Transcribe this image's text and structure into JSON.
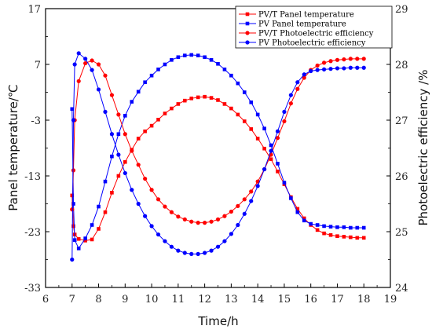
{
  "chart_data": {
    "type": "line",
    "xlabel": "Time/h",
    "ylabel_left": "Panel temperature/℃",
    "ylabel_right": "Photoelectric efficiency /%",
    "xlim": [
      6,
      19
    ],
    "ylim_left": [
      -33,
      17
    ],
    "ylim_right": [
      24,
      29
    ],
    "x_ticks": [
      "6",
      "7",
      "8",
      "9",
      "10",
      "11",
      "12",
      "13",
      "14",
      "15",
      "16",
      "17",
      "18",
      "19"
    ],
    "y_left_ticks": [
      "-33",
      "-23",
      "-13",
      "-3",
      "7",
      "17"
    ],
    "y_right_ticks": [
      "24",
      "25",
      "26",
      "27",
      "28",
      "29"
    ],
    "legend_position": "top-right",
    "series": [
      {
        "name": "PV/T Panel temperature",
        "axis": "left",
        "color": "#ff0000",
        "marker": "square",
        "x": [
          7.0,
          7.05,
          7.1,
          7.25,
          7.5,
          7.75,
          8.0,
          8.25,
          8.5,
          8.75,
          9.0,
          9.25,
          9.5,
          9.75,
          10.0,
          10.25,
          10.5,
          10.75,
          11.0,
          11.25,
          11.5,
          11.75,
          12.0,
          12.25,
          12.5,
          12.75,
          13.0,
          13.25,
          13.5,
          13.75,
          14.0,
          14.25,
          14.5,
          14.75,
          15.0,
          15.25,
          15.5,
          15.75,
          16.0,
          16.25,
          16.5,
          16.75,
          17.0,
          17.25,
          17.5,
          17.75,
          18.0
        ],
        "y": [
          -16.5,
          -22.0,
          -23.5,
          -24.3,
          -24.6,
          -24.4,
          -22.5,
          -19.5,
          -16.0,
          -13.0,
          -10.5,
          -8.3,
          -6.3,
          -5.0,
          -4.0,
          -2.9,
          -1.8,
          -0.9,
          -0.1,
          0.5,
          0.9,
          1.1,
          1.2,
          1.0,
          0.6,
          -0.1,
          -0.9,
          -2.0,
          -3.2,
          -4.6,
          -6.3,
          -8.1,
          -10.0,
          -12.2,
          -14.5,
          -16.8,
          -18.9,
          -20.6,
          -21.8,
          -22.7,
          -23.3,
          -23.6,
          -23.8,
          -23.9,
          -24.0,
          -24.1,
          -24.1
        ]
      },
      {
        "name": "PV Panel temperature",
        "axis": "left",
        "color": "#0000ff",
        "marker": "square",
        "x": [
          7.0,
          7.05,
          7.1,
          7.25,
          7.5,
          7.75,
          8.0,
          8.25,
          8.5,
          8.75,
          9.0,
          9.25,
          9.5,
          9.75,
          10.0,
          10.25,
          10.5,
          10.75,
          11.0,
          11.25,
          11.5,
          11.75,
          12.0,
          12.25,
          12.5,
          12.75,
          13.0,
          13.25,
          13.5,
          13.75,
          14.0,
          14.25,
          14.5,
          14.75,
          15.0,
          15.25,
          15.5,
          15.75,
          16.0,
          16.25,
          16.5,
          16.75,
          17.0,
          17.25,
          17.5,
          17.75,
          18.0
        ],
        "y": [
          -1.0,
          -18.0,
          -24.5,
          -26.0,
          -24.2,
          -21.8,
          -18.5,
          -14.0,
          -9.5,
          -5.5,
          -2.2,
          0.3,
          2.1,
          3.8,
          5.0,
          6.1,
          7.0,
          7.8,
          8.3,
          8.6,
          8.7,
          8.6,
          8.3,
          7.8,
          7.1,
          6.1,
          5.0,
          3.6,
          2.0,
          0.2,
          -2.0,
          -4.5,
          -7.5,
          -10.8,
          -14.2,
          -17.0,
          -19.5,
          -21.0,
          -21.6,
          -21.8,
          -22.0,
          -22.1,
          -22.2,
          -22.2,
          -22.3,
          -22.3,
          -22.3
        ]
      },
      {
        "name": "PV/T Photoelectric efficiency",
        "axis": "right",
        "color": "#ff0000",
        "marker": "circle",
        "x": [
          7.0,
          7.05,
          7.1,
          7.25,
          7.5,
          7.75,
          8.0,
          8.25,
          8.5,
          8.75,
          9.0,
          9.25,
          9.5,
          9.75,
          10.0,
          10.25,
          10.5,
          10.75,
          11.0,
          11.25,
          11.5,
          11.75,
          12.0,
          12.25,
          12.5,
          12.75,
          13.0,
          13.25,
          13.5,
          13.75,
          14.0,
          14.25,
          14.5,
          14.75,
          15.0,
          15.25,
          15.5,
          15.75,
          16.0,
          16.25,
          16.5,
          16.75,
          17.0,
          17.25,
          17.5,
          17.75,
          18.0
        ],
        "y": [
          25.4,
          26.1,
          27.0,
          27.7,
          28.02,
          28.07,
          28.0,
          27.8,
          27.45,
          27.1,
          26.75,
          26.45,
          26.2,
          25.95,
          25.75,
          25.58,
          25.45,
          25.35,
          25.27,
          25.22,
          25.18,
          25.16,
          25.16,
          25.18,
          25.22,
          25.28,
          25.36,
          25.46,
          25.58,
          25.72,
          25.9,
          26.12,
          26.38,
          26.68,
          26.98,
          27.3,
          27.56,
          27.76,
          27.9,
          27.98,
          28.03,
          28.06,
          28.08,
          28.09,
          28.1,
          28.1,
          28.1
        ]
      },
      {
        "name": "PV Photoelectric efficiency",
        "axis": "right",
        "color": "#0000ff",
        "marker": "circle",
        "x": [
          7.0,
          7.05,
          7.1,
          7.25,
          7.5,
          7.75,
          8.0,
          8.25,
          8.5,
          8.75,
          9.0,
          9.25,
          9.5,
          9.75,
          10.0,
          10.25,
          10.5,
          10.75,
          11.0,
          11.25,
          11.5,
          11.75,
          12.0,
          12.25,
          12.5,
          12.75,
          13.0,
          13.25,
          13.5,
          13.75,
          14.0,
          14.25,
          14.5,
          14.75,
          15.0,
          15.25,
          15.5,
          15.75,
          16.0,
          16.25,
          16.5,
          16.75,
          17.0,
          17.25,
          17.5,
          17.75,
          18.0
        ],
        "y": [
          24.5,
          27.0,
          28.0,
          28.2,
          28.1,
          27.9,
          27.55,
          27.15,
          26.75,
          26.38,
          26.05,
          25.75,
          25.5,
          25.28,
          25.1,
          24.95,
          24.83,
          24.73,
          24.66,
          24.62,
          24.6,
          24.6,
          24.62,
          24.66,
          24.73,
          24.83,
          24.96,
          25.12,
          25.32,
          25.55,
          25.82,
          26.12,
          26.45,
          26.8,
          27.15,
          27.45,
          27.68,
          27.82,
          27.88,
          27.9,
          27.91,
          27.92,
          27.93,
          27.93,
          27.94,
          27.94,
          27.94
        ]
      }
    ]
  }
}
